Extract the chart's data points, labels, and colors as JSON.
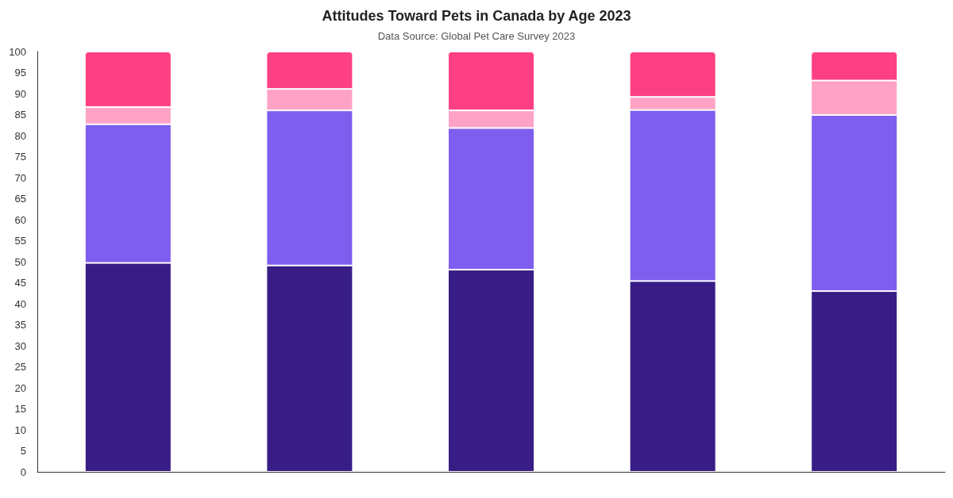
{
  "chart_data": {
    "type": "bar",
    "title": "Attitudes Toward Pets in Canada by Age 2023",
    "subtitle": "Data Source: Global Pet Care Survey 2023",
    "categories": [
      null,
      null,
      null,
      null,
      null
    ],
    "stacked": true,
    "series": [
      {
        "color": "#371d85",
        "values": [
          49.7,
          49.1,
          48.1,
          45.4,
          43.0
        ]
      },
      {
        "color": "#7e5eee",
        "values": [
          33.0,
          36.9,
          33.7,
          40.7,
          41.9
        ]
      },
      {
        "color": "#fea3c5",
        "values": [
          4.1,
          5.1,
          4.2,
          3.1,
          8.2
        ]
      },
      {
        "color": "#fd3f84",
        "values": [
          13.2,
          8.9,
          14.0,
          10.8,
          6.9
        ]
      }
    ],
    "ylim": [
      0,
      100
    ],
    "yticks": [
      0,
      5,
      10,
      15,
      20,
      25,
      30,
      35,
      40,
      45,
      50,
      55,
      60,
      65,
      70,
      75,
      80,
      85,
      90,
      95,
      100
    ],
    "grid": false
  }
}
